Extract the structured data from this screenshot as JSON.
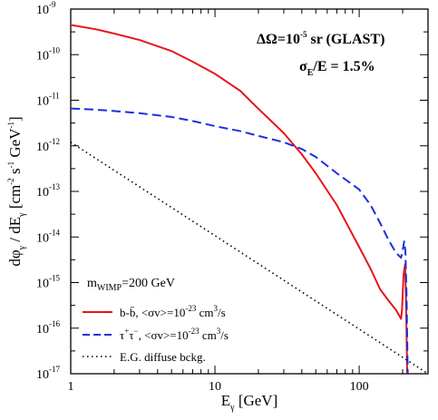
{
  "chart_data": {
    "type": "line",
    "xlabel": {
      "main": "E",
      "sub": "γ",
      "unit": "  [GeV]"
    },
    "ylabel": {
      "p1": "dφ",
      "s1": "γ",
      "p2": " / dE",
      "s2": "γ",
      "p3": "  [cm",
      "e1": "-2",
      "p4": " s",
      "e2": "-1",
      "p5": " GeV",
      "e3": "-1",
      "p6": "]"
    },
    "xscale": "log",
    "yscale": "log",
    "xlim": [
      1,
      300
    ],
    "ylim": [
      1e-17,
      1e-09
    ],
    "x_ticks": [
      {
        "value": 1,
        "label": "1"
      },
      {
        "value": 10,
        "label": "10"
      },
      {
        "value": 100,
        "label": "100"
      }
    ],
    "y_ticks": [
      {
        "value": 1e-17,
        "base": "10",
        "exp": "-17"
      },
      {
        "value": 1e-16,
        "base": "10",
        "exp": "-16"
      },
      {
        "value": 1e-15,
        "base": "10",
        "exp": "-15"
      },
      {
        "value": 1e-14,
        "base": "10",
        "exp": "-14"
      },
      {
        "value": 1e-13,
        "base": "10",
        "exp": "-13"
      },
      {
        "value": 1e-12,
        "base": "10",
        "exp": "-12"
      },
      {
        "value": 1e-11,
        "base": "10",
        "exp": "-11"
      },
      {
        "value": 1e-10,
        "base": "10",
        "exp": "-10"
      },
      {
        "value": 1e-09,
        "base": "10",
        "exp": "-9"
      }
    ],
    "annotations": {
      "omega": {
        "p1": "ΔΩ=10",
        "e1": "-5",
        "p2": " sr (GLAST)"
      },
      "sigma": {
        "p1": "σ",
        "s1": "E",
        "p2": "/E = 1.5%"
      },
      "mass": {
        "p1": "m",
        "s1": "WIMP",
        "p2": "=200 GeV"
      }
    },
    "legend": {
      "position": "bottom-left",
      "entries": [
        {
          "p1": "b-b̄, <σv>=10",
          "e1": "-23",
          "p2": " cm",
          "e2": "3",
          "p3": "/s"
        },
        {
          "p1": "τ",
          "e0": "+",
          "p0": "τ",
          "e00": "−",
          "p1b": ", <σv>=10",
          "e1": "-23",
          "p2": " cm",
          "e2": "3",
          "p3": "/s"
        },
        {
          "p1": "E.G. diffuse bckg."
        }
      ]
    },
    "series": [
      {
        "color": "#e8151b",
        "dash": "solid",
        "points": [
          [
            1,
            4.5e-10
          ],
          [
            1.5,
            3.6e-10
          ],
          [
            2,
            2.9e-10
          ],
          [
            3,
            2.1e-10
          ],
          [
            5,
            1.2e-10
          ],
          [
            7,
            7e-11
          ],
          [
            10,
            3.8e-11
          ],
          [
            15,
            1.6e-11
          ],
          [
            20,
            6.5e-12
          ],
          [
            30,
            1.9e-12
          ],
          [
            40,
            6.5e-13
          ],
          [
            50,
            2.5e-13
          ],
          [
            70,
            5e-14
          ],
          [
            100,
            6e-15
          ],
          [
            120,
            2e-15
          ],
          [
            140,
            7e-16
          ],
          [
            160,
            4e-16
          ],
          [
            180,
            2.5e-16
          ],
          [
            195,
            1.6e-16
          ],
          [
            198,
            2.5e-16
          ],
          [
            203,
            1.5e-15
          ],
          [
            208,
            2.5e-15
          ],
          [
            211,
            5e-16
          ],
          [
            215,
            1e-17
          ]
        ]
      },
      {
        "color": "#1a2ee0",
        "dash": "dashed",
        "points": [
          [
            1,
            6.6e-12
          ],
          [
            1.5,
            6.2e-12
          ],
          [
            2,
            5.8e-12
          ],
          [
            3,
            5.2e-12
          ],
          [
            5,
            4.3e-12
          ],
          [
            7,
            3.5e-12
          ],
          [
            10,
            2.7e-12
          ],
          [
            15,
            2.1e-12
          ],
          [
            20,
            1.65e-12
          ],
          [
            30,
            1.2e-12
          ],
          [
            40,
            8.5e-13
          ],
          [
            50,
            5.7e-13
          ],
          [
            70,
            2.5e-13
          ],
          [
            100,
            1.1e-13
          ],
          [
            120,
            5e-14
          ],
          [
            140,
            2e-14
          ],
          [
            160,
            8.5e-15
          ],
          [
            180,
            4.5e-15
          ],
          [
            195,
            3.5e-15
          ],
          [
            200,
            5e-15
          ],
          [
            205,
            8e-15
          ],
          [
            209,
            5e-15
          ],
          [
            213,
            5e-16
          ],
          [
            217,
            1e-17
          ]
        ]
      },
      {
        "color": "#000000",
        "dash": "dotted",
        "points": [
          [
            1,
            1.2e-12
          ],
          [
            300,
            1e-17
          ]
        ]
      }
    ]
  }
}
